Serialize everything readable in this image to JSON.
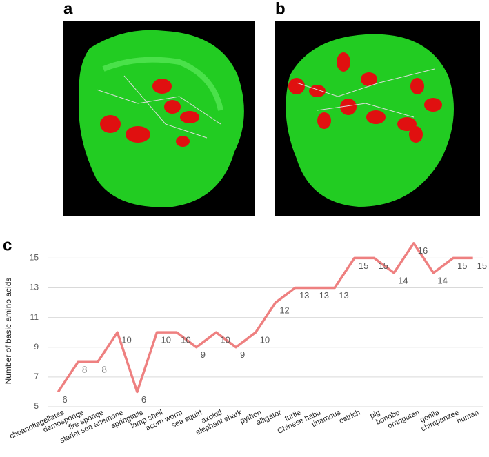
{
  "panels": {
    "a": "a",
    "b": "b",
    "c": "c"
  },
  "chart_data": {
    "type": "line",
    "y_label": "Number of basic amino acids",
    "categories": [
      "choanoflagellates",
      "demosponge",
      "fire sponge",
      "starlet sea anemone",
      "springtails",
      "lamp shell",
      "acorn worm",
      "sea squirt",
      "axolotl",
      "elephant shark",
      "python",
      "alligator",
      "turtle",
      "Chinese habu",
      "tinamous",
      "ostrich",
      "pig",
      "bonobo",
      "orangutan",
      "gorilla",
      "chimpanzee",
      "human"
    ],
    "values": [
      6,
      8,
      8,
      10,
      6,
      10,
      10,
      9,
      10,
      9,
      10,
      12,
      13,
      13,
      13,
      15,
      15,
      14,
      16,
      14,
      15,
      15
    ],
    "color": "#ee8080",
    "ylim": [
      5,
      16.5
    ],
    "yticks": [
      5,
      7,
      9,
      11,
      13,
      15
    ],
    "grid": true
  }
}
